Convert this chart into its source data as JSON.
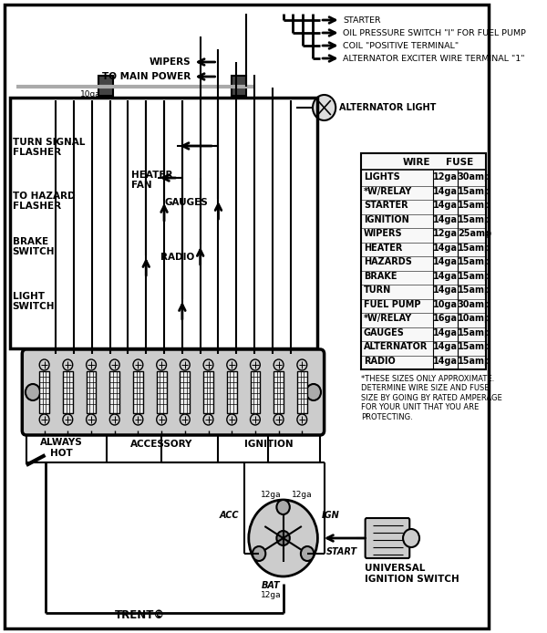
{
  "bg_color": "#ffffff",
  "fg_color": "#000000",
  "table_rows": [
    [
      "LIGHTS",
      "12ga",
      "30amp"
    ],
    [
      "*W/RELAY",
      "14ga",
      "15amp"
    ],
    [
      "STARTER",
      "14ga",
      "15amp"
    ],
    [
      "IGNITION",
      "14ga",
      "15amp"
    ],
    [
      "WIPERS",
      "12ga",
      "25amp"
    ],
    [
      "HEATER",
      "14ga",
      "15amp"
    ],
    [
      "HAZARDS",
      "14ga",
      "15amp"
    ],
    [
      "BRAKE",
      "14ga",
      "15amp"
    ],
    [
      "TURN",
      "14ga",
      "15amp"
    ],
    [
      "FUEL PUMP",
      "10ga",
      "30amp"
    ],
    [
      "*W/RELAY",
      "16ga",
      "10amp"
    ],
    [
      "GAUGES",
      "14ga",
      "15amp"
    ],
    [
      "ALTERNATOR",
      "14ga",
      "15amp"
    ],
    [
      "RADIO",
      "14ga",
      "15amp"
    ]
  ],
  "footnote": "*THESE SIZES ONLY APPROXIMATE.\nDETERMINE WIRE SIZE AND FUSE\nSIZE BY GOING BY RATED AMPERAGE\nFOR YOUR UNIT THAT YOU ARE\nPROTECTING.",
  "copyright": "TRENT©",
  "universal_label": "UNIVERSAL\nIGNITION SWITCH",
  "alternator_light_label": "ALTERNATOR LIGHT",
  "fuse_label": "10ga",
  "right_labels": [
    "STARTER",
    "OIL PRESSURE SWITCH \"I\" FOR FUEL PUMP",
    "COIL \"POSITIVE TERMINAL\"",
    "ALTERNATOR EXCITER WIRE TERMINAL \"1\""
  ]
}
